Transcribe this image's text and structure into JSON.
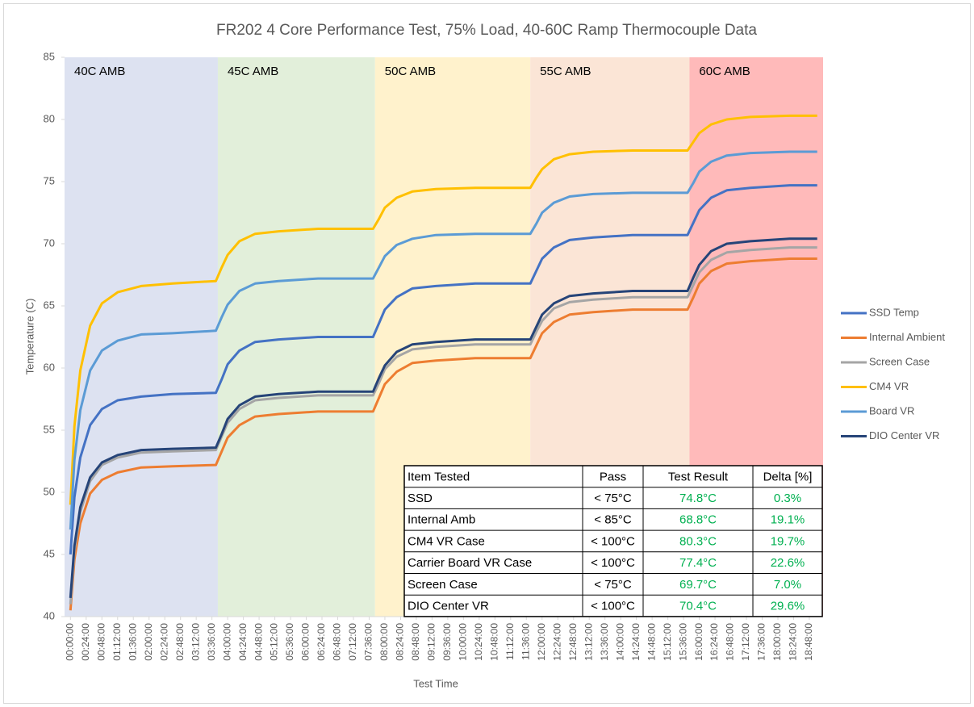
{
  "chart_data": {
    "type": "line",
    "title": "FR202 4 Core Performance Test, 75% Load, 40-60C Ramp Thermocouple Data",
    "x_label": "Test Time",
    "y_label": "Temperature (C)",
    "xlim": [
      -0.15,
      19.15
    ],
    "ylim": [
      40,
      85
    ],
    "yticks": [
      40,
      45,
      50,
      55,
      60,
      65,
      70,
      75,
      80,
      85
    ],
    "xticks": [
      {
        "value": 0,
        "label": "00:00:00"
      },
      {
        "value": 0.4,
        "label": "00:24:00"
      },
      {
        "value": 0.8,
        "label": "00:48:00"
      },
      {
        "value": 1.2,
        "label": "01:12:00"
      },
      {
        "value": 1.6,
        "label": "01:36:00"
      },
      {
        "value": 2.0,
        "label": "02:00:00"
      },
      {
        "value": 2.4,
        "label": "02:24:00"
      },
      {
        "value": 2.8,
        "label": "02:48:00"
      },
      {
        "value": 3.2,
        "label": "03:12:00"
      },
      {
        "value": 3.6,
        "label": "03:36:00"
      },
      {
        "value": 4.0,
        "label": "04:00:00"
      },
      {
        "value": 4.4,
        "label": "04:24:00"
      },
      {
        "value": 4.8,
        "label": "04:48:00"
      },
      {
        "value": 5.2,
        "label": "05:12:00"
      },
      {
        "value": 5.6,
        "label": "05:36:00"
      },
      {
        "value": 6.0,
        "label": "06:00:00"
      },
      {
        "value": 6.4,
        "label": "06:24:00"
      },
      {
        "value": 6.8,
        "label": "06:48:00"
      },
      {
        "value": 7.2,
        "label": "07:12:00"
      },
      {
        "value": 7.6,
        "label": "07:36:00"
      },
      {
        "value": 8.0,
        "label": "08:00:00"
      },
      {
        "value": 8.4,
        "label": "08:24:00"
      },
      {
        "value": 8.8,
        "label": "08:48:00"
      },
      {
        "value": 9.2,
        "label": "09:12:00"
      },
      {
        "value": 9.6,
        "label": "09:36:00"
      },
      {
        "value": 10.0,
        "label": "10:00:00"
      },
      {
        "value": 10.4,
        "label": "10:24:00"
      },
      {
        "value": 10.8,
        "label": "10:48:00"
      },
      {
        "value": 11.2,
        "label": "11:12:00"
      },
      {
        "value": 11.6,
        "label": "11:36:00"
      },
      {
        "value": 12.0,
        "label": "12:00:00"
      },
      {
        "value": 12.4,
        "label": "12:24:00"
      },
      {
        "value": 12.8,
        "label": "12:48:00"
      },
      {
        "value": 13.2,
        "label": "13:12:00"
      },
      {
        "value": 13.6,
        "label": "13:36:00"
      },
      {
        "value": 14.0,
        "label": "14:00:00"
      },
      {
        "value": 14.4,
        "label": "14:24:00"
      },
      {
        "value": 14.8,
        "label": "14:48:00"
      },
      {
        "value": 15.2,
        "label": "15:12:00"
      },
      {
        "value": 15.6,
        "label": "15:36:00"
      },
      {
        "value": 16.0,
        "label": "16:00:00"
      },
      {
        "value": 16.4,
        "label": "16:24:00"
      },
      {
        "value": 16.8,
        "label": "16:48:00"
      },
      {
        "value": 17.2,
        "label": "17:12:00"
      },
      {
        "value": 17.6,
        "label": "17:36:00"
      },
      {
        "value": 18.0,
        "label": "18:00:00"
      },
      {
        "value": 18.4,
        "label": "18:24:00"
      },
      {
        "value": 18.8,
        "label": "18:48:00"
      }
    ],
    "bands": [
      {
        "label": "40C AMB",
        "range": [
          -0.15,
          3.75
        ],
        "color": "#dde2f1"
      },
      {
        "label": "45C AMB",
        "range": [
          3.75,
          7.75
        ],
        "color": "#e2efda"
      },
      {
        "label": "50C AMB",
        "range": [
          7.75,
          11.7
        ],
        "color": "#fff2cc"
      },
      {
        "label": "55C AMB",
        "range": [
          11.7,
          15.75
        ],
        "color": "#fbe5d6"
      },
      {
        "label": "60C AMB",
        "range": [
          15.75,
          19.15
        ],
        "color": "#ffbaba"
      }
    ],
    "x": [
      0,
      0.1,
      0.25,
      0.5,
      0.8,
      1.2,
      1.8,
      2.6,
      3.7,
      3.85,
      4.0,
      4.3,
      4.7,
      5.3,
      6.3,
      7.7,
      7.85,
      8.0,
      8.3,
      8.7,
      9.3,
      10.3,
      11.7,
      11.85,
      12.0,
      12.3,
      12.7,
      13.3,
      14.3,
      15.7,
      15.85,
      16.0,
      16.3,
      16.7,
      17.3,
      18.3,
      19.0
    ],
    "series": [
      {
        "name": "SSD Temp",
        "color": "#4472c4",
        "values": [
          45,
          49.6,
          52.8,
          55.4,
          56.7,
          57.4,
          57.7,
          57.9,
          58.0,
          59.1,
          60.3,
          61.4,
          62.1,
          62.3,
          62.5,
          62.5,
          63.6,
          64.7,
          65.7,
          66.4,
          66.6,
          66.8,
          66.8,
          67.8,
          68.8,
          69.7,
          70.3,
          70.5,
          70.7,
          70.7,
          71.7,
          72.7,
          73.7,
          74.3,
          74.5,
          74.7,
          74.7
        ]
      },
      {
        "name": "Internal Ambient",
        "color": "#ed7d31",
        "values": [
          40.5,
          44.6,
          47.5,
          49.9,
          51.0,
          51.6,
          52.0,
          52.1,
          52.2,
          53.3,
          54.4,
          55.4,
          56.1,
          56.3,
          56.5,
          56.5,
          57.6,
          58.7,
          59.7,
          60.4,
          60.6,
          60.8,
          60.8,
          61.8,
          62.8,
          63.7,
          64.3,
          64.5,
          64.7,
          64.7,
          65.7,
          66.8,
          67.8,
          68.4,
          68.6,
          68.8,
          68.8
        ]
      },
      {
        "name": "Screen Case",
        "color": "#a5a5a5",
        "values": [
          41,
          45.3,
          48.4,
          50.9,
          52.2,
          52.8,
          53.2,
          53.3,
          53.4,
          54.5,
          55.6,
          56.7,
          57.4,
          57.6,
          57.8,
          57.8,
          58.8,
          59.9,
          60.9,
          61.5,
          61.7,
          61.9,
          61.9,
          62.9,
          63.8,
          64.8,
          65.3,
          65.5,
          65.7,
          65.7,
          66.7,
          67.7,
          68.7,
          69.3,
          69.5,
          69.7,
          69.7
        ]
      },
      {
        "name": "CM4 VR",
        "color": "#ffc000",
        "values": [
          49,
          55.3,
          59.8,
          63.4,
          65.2,
          66.1,
          66.6,
          66.8,
          67.0,
          68.1,
          69.1,
          70.2,
          70.8,
          71.0,
          71.2,
          71.2,
          72.0,
          72.9,
          73.7,
          74.2,
          74.4,
          74.5,
          74.5,
          75.3,
          76.0,
          76.8,
          77.2,
          77.4,
          77.5,
          77.5,
          78.2,
          78.9,
          79.6,
          80.0,
          80.2,
          80.3,
          80.3
        ]
      },
      {
        "name": "Board VR",
        "color": "#5b9bd5",
        "values": [
          47,
          52.6,
          56.6,
          59.8,
          61.4,
          62.2,
          62.7,
          62.8,
          63.0,
          64.1,
          65.1,
          66.2,
          66.8,
          67.0,
          67.2,
          67.2,
          68.1,
          69.0,
          69.9,
          70.4,
          70.7,
          70.8,
          70.8,
          71.6,
          72.5,
          73.3,
          73.8,
          74.0,
          74.1,
          74.1,
          74.9,
          75.8,
          76.6,
          77.1,
          77.3,
          77.4,
          77.4
        ]
      },
      {
        "name": "DIO Center VR",
        "color": "#264478",
        "values": [
          41.5,
          45.7,
          48.8,
          51.2,
          52.4,
          53.0,
          53.4,
          53.5,
          53.6,
          54.7,
          55.9,
          57.0,
          57.7,
          57.9,
          58.1,
          58.1,
          59.2,
          60.2,
          61.3,
          61.9,
          62.1,
          62.3,
          62.3,
          63.3,
          64.3,
          65.2,
          65.8,
          66.0,
          66.2,
          66.2,
          67.3,
          68.3,
          69.4,
          70.0,
          70.2,
          70.4,
          70.4
        ]
      }
    ],
    "table": {
      "header": [
        "Item Tested",
        "Pass",
        "Test Result",
        "Delta [%]"
      ],
      "result_color": "#00b050",
      "rows": [
        [
          "SSD",
          "< 75°C",
          "74.8°C",
          "0.3%"
        ],
        [
          "Internal Amb",
          "< 85°C",
          "68.8°C",
          "19.1%"
        ],
        [
          "CM4 VR Case",
          "< 100°C",
          "80.3°C",
          "19.7%"
        ],
        [
          "Carrier Board VR Case",
          "< 100°C",
          "77.4°C",
          "22.6%"
        ],
        [
          "Screen Case",
          "< 75°C",
          "69.7°C",
          "7.0%"
        ],
        [
          "DIO Center VR",
          "< 100°C",
          "70.4°C",
          "29.6%"
        ]
      ]
    }
  }
}
